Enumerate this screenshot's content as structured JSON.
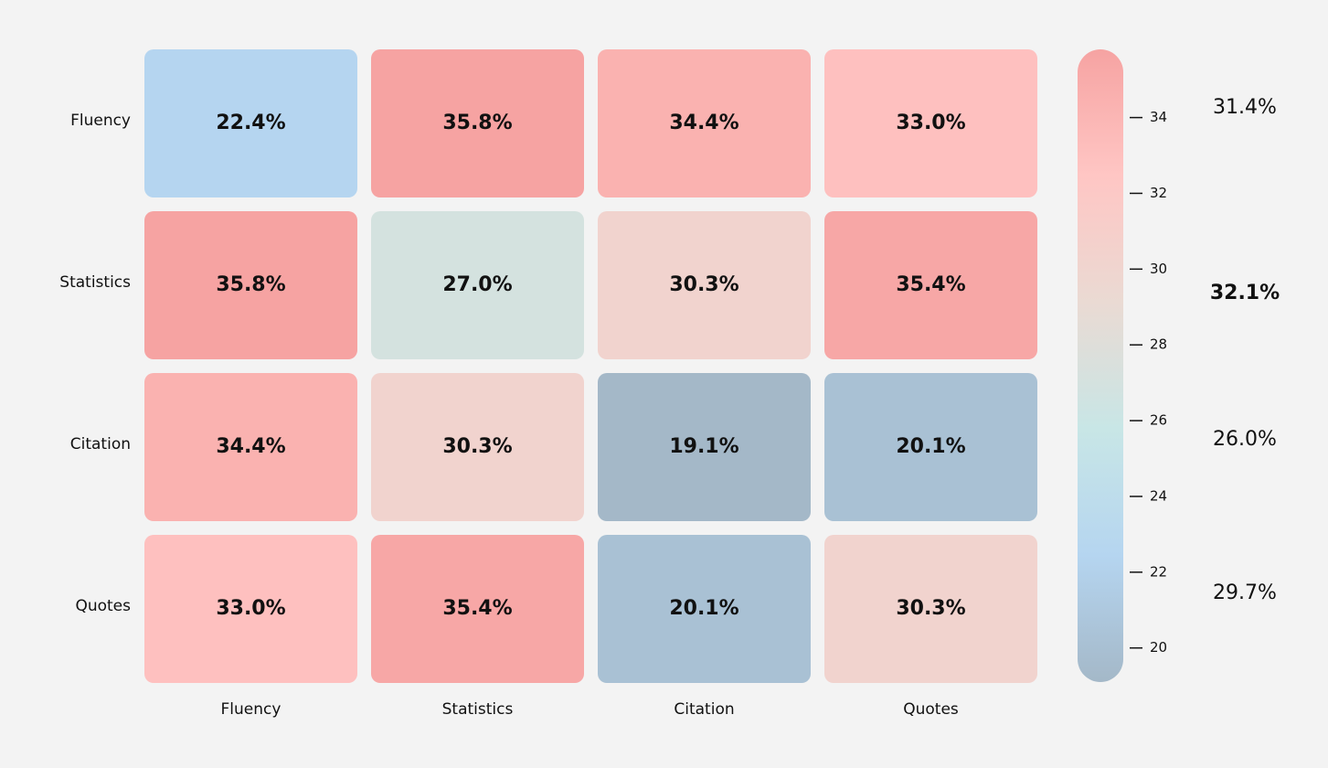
{
  "chart_data": {
    "type": "heatmap",
    "rows": [
      "Fluency",
      "Statistics",
      "Citation",
      "Quotes"
    ],
    "columns": [
      "Fluency",
      "Statistics",
      "Citation",
      "Quotes"
    ],
    "values": [
      [
        22.4,
        35.8,
        34.4,
        33.0
      ],
      [
        35.8,
        27.0,
        30.3,
        35.4
      ],
      [
        34.4,
        30.3,
        19.1,
        20.1
      ],
      [
        33.0,
        35.4,
        20.1,
        30.3
      ]
    ],
    "value_labels": [
      [
        "22.4%",
        "35.8%",
        "34.4%",
        "33.0%"
      ],
      [
        "35.8%",
        "27.0%",
        "30.3%",
        "35.4%"
      ],
      [
        "34.4%",
        "30.3%",
        "19.1%",
        "20.1%"
      ],
      [
        "33.0%",
        "35.4%",
        "20.1%",
        "30.3%"
      ]
    ],
    "zlim": [
      19.1,
      35.8
    ],
    "zticks": [
      20,
      22,
      24,
      26,
      28,
      30,
      32,
      34
    ],
    "colors": [
      "#a4b8c8",
      "#b5d5f0",
      "#c8e6e6",
      "#eadad3",
      "#ffc6c4",
      "#f6a3a2"
    ],
    "row_averages": {
      "values": [
        31.4,
        32.1,
        26.0,
        29.7
      ],
      "value_labels": [
        "31.4%",
        "32.1%",
        "26.0%",
        "29.7%"
      ]
    }
  }
}
